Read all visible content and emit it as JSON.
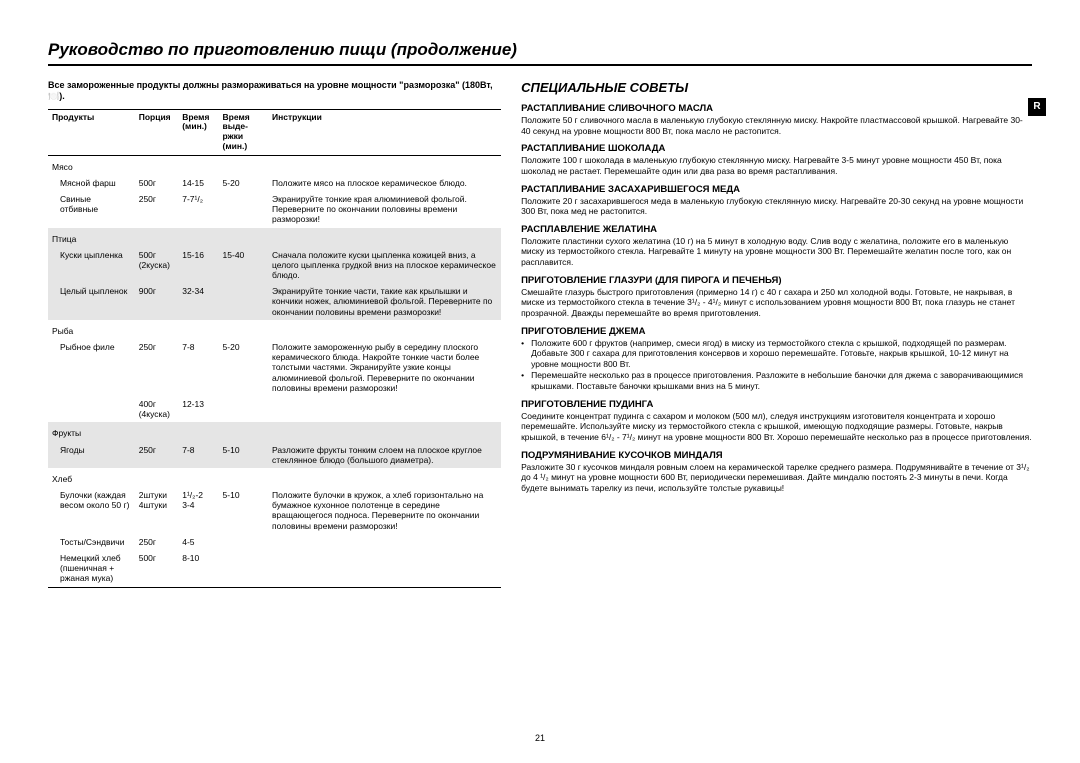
{
  "title": "Руководство по приготовлению пищи (продолжение)",
  "intro": "Все замороженные продукты должны размораживаться на уровне мощности \"разморозка\" (180Вт, 🍽️).",
  "side_tab": "R",
  "page_number": "21",
  "table": {
    "headers": [
      "Продукты",
      "Порция",
      "Время (мин.)",
      "Время выде-ржки (мин.)",
      "Инструкции"
    ],
    "groups": [
      {
        "name": "Мясо",
        "shaded": false,
        "rows": [
          {
            "product": "Мясной фарш",
            "portion": "500г",
            "time": "14-15",
            "hold": "5-20",
            "instr": "Положите мясо на плоское керамическое блюдо."
          },
          {
            "product": "Свиные отбивные",
            "portion": "250г",
            "time": "7-7¹/₂",
            "hold": "",
            "instr": "Экранируйте тонкие края алюминиевой фольгой. Переверните по окончании половины времени разморозки!"
          }
        ]
      },
      {
        "name": "Птица",
        "shaded": true,
        "rows": [
          {
            "product": "Куски цыпленка",
            "portion": "500г (2куска)",
            "time": "15-16",
            "hold": "15-40",
            "instr": "Сначала положите куски цыпленка кожицей вниз, а целого цыпленка грудкой вниз на плоское керамическое блюдо."
          },
          {
            "product": "Целый цыпленок",
            "portion": "900г",
            "time": "32-34",
            "hold": "",
            "instr": "Экранируйте тонкие части, такие как крылышки и кончики ножек, алюминиевой фольгой. Переверните по окончании половины времени разморозки!"
          }
        ]
      },
      {
        "name": "Рыба",
        "shaded": false,
        "rows": [
          {
            "product": "Рыбное филе",
            "portion": "250г",
            "time": "7-8",
            "hold": "5-20",
            "instr": "Положите замороженную рыбу в середину плоского керамического блюда. Накройте тонкие части более толстыми частями. Экранируйте узкие концы алюминиевой фольгой. Переверните по окончании половины времени разморозки!"
          },
          {
            "product": "",
            "portion": "400г (4куска)",
            "time": "12-13",
            "hold": "",
            "instr": ""
          }
        ]
      },
      {
        "name": "Фрукты",
        "shaded": true,
        "rows": [
          {
            "product": "Ягоды",
            "portion": "250г",
            "time": "7-8",
            "hold": "5-10",
            "instr": "Разложите фрукты тонким слоем на плоское круглое стеклянное блюдо (большого диаметра)."
          }
        ]
      },
      {
        "name": "Хлеб",
        "shaded": false,
        "rows": [
          {
            "product": "Булочки (каждая весом около 50 г)",
            "portion": "2штуки\n4штуки",
            "time": "1¹/₂-2\n3-4",
            "hold": "5-10",
            "instr": "Положите булочки в кружок, а хлеб горизонтально на бумажное кухонное полотенце в середине вращающегося подноса. Переверните по окончании половины времени разморозки!"
          },
          {
            "product": "Тосты/Сэндвичи",
            "portion": "250г",
            "time": "4-5",
            "hold": "",
            "instr": ""
          },
          {
            "product": "Немецкий хлеб (пшеничная + ржаная мука)",
            "portion": "500г",
            "time": "8-10",
            "hold": "",
            "instr": ""
          }
        ]
      }
    ]
  },
  "tips": {
    "title": "СПЕЦИАЛЬНЫЕ СОВЕТЫ",
    "items": [
      {
        "head": "РАСТАПЛИВАНИЕ СЛИВОЧНОГО МАСЛА",
        "body": "Положите 50 г сливочного масла в маленькую глубокую стеклянную миску. Накройте пластмассовой крышкой. Нагревайте 30-40 секунд на уровне мощности 800 Вт, пока масло не растопится."
      },
      {
        "head": "РАСТАПЛИВАНИЕ ШОКОЛАДА",
        "body": "Положите 100 г шоколада в маленькую глубокую стеклянную миску. Нагревайте 3-5 минут уровне мощности 450 Вт, пока шоколад не растает. Перемешайте один или два раза во время растапливания."
      },
      {
        "head": "РАСТАПЛИВАНИЕ ЗАСАХАРИВШЕГОСЯ МЕДА",
        "body": "Положите 20 г засахарившегося меда в маленькую глубокую стеклянную миску. Нагревайте 20-30 секунд на уровне мощности 300 Вт, пока мед не растопится."
      },
      {
        "head": "РАСПЛАВЛЕНИЕ ЖЕЛАТИНА",
        "body": "Положите пластинки сухого желатина (10 г) на 5 минут в холодную воду. Слив воду с желатина, положите его в маленькую миску из термостойкого стекла. Нагревайте 1 минуту на уровне мощности 300 Вт. Перемешайте желатин после того, как он расплавится."
      },
      {
        "head": "ПРИГОТОВЛЕНИЕ ГЛАЗУРИ (ДЛЯ ПИРОГА И ПЕЧЕНЬЯ)",
        "body": "Смешайте глазурь быстрого приготовления (примерно 14 г) с 40 г сахара и 250 мл холодной воды. Готовьте, не накрывая, в миске из термостойкого стекла в течение 3¹/₂ - 4¹/₂ минут с использованием уровня мощности 800 Вт, пока глазурь не станет прозрачной. Дважды перемешайте во время приготовления."
      },
      {
        "head": "ПРИГОТОВЛЕНИЕ ДЖЕМА",
        "bullets": [
          "Положите 600 г фруктов (например, смеси ягод) в миску из термостойкого стекла с крышкой, подходящей по размерам. Добавьте 300 г сахара для приготовления консервов и хорошо перемешайте. Готовьте, накрыв крышкой, 10-12 минут на уровне мощности 800 Вт.",
          "Перемешайте несколько раз в процессе приготовления. Разложите в небольшие баночки для джема с заворачивающимися крышками. Поставьте баночки крышками вниз на 5 минут."
        ]
      },
      {
        "head": "ПРИГОТОВЛЕНИЕ ПУДИНГА",
        "body": "Соедините концентрат пудинга с сахаром и молоком (500 мл), следуя инструкциям изготовителя концентрата и хорошо перемешайте. Используйте миску из термостойкого стекла с крышкой, имеющую подходящие размеры. Готовьте, накрыв крышкой, в течение 6¹/₂ - 7¹/₂ минут на уровне мощности 800 Вт. Хорошо перемешайте несколько раз в процессе приготовления."
      },
      {
        "head": "ПОДРУМЯНИВАНИЕ КУСОЧКОВ МИНДАЛЯ",
        "body": "Разложите 30 г кусочков миндаля ровным слоем на керамической тарелке среднего размера. Подрумянивайте в течение от 3¹/₂ до 4 ¹/₂ минут на уровне мощности 600 Вт, периодически перемешивая. Дайте миндалю постоять 2-3 минуты в печи. Когда будете вынимать тарелку из печи, используйте толстые рукавицы!"
      }
    ]
  }
}
